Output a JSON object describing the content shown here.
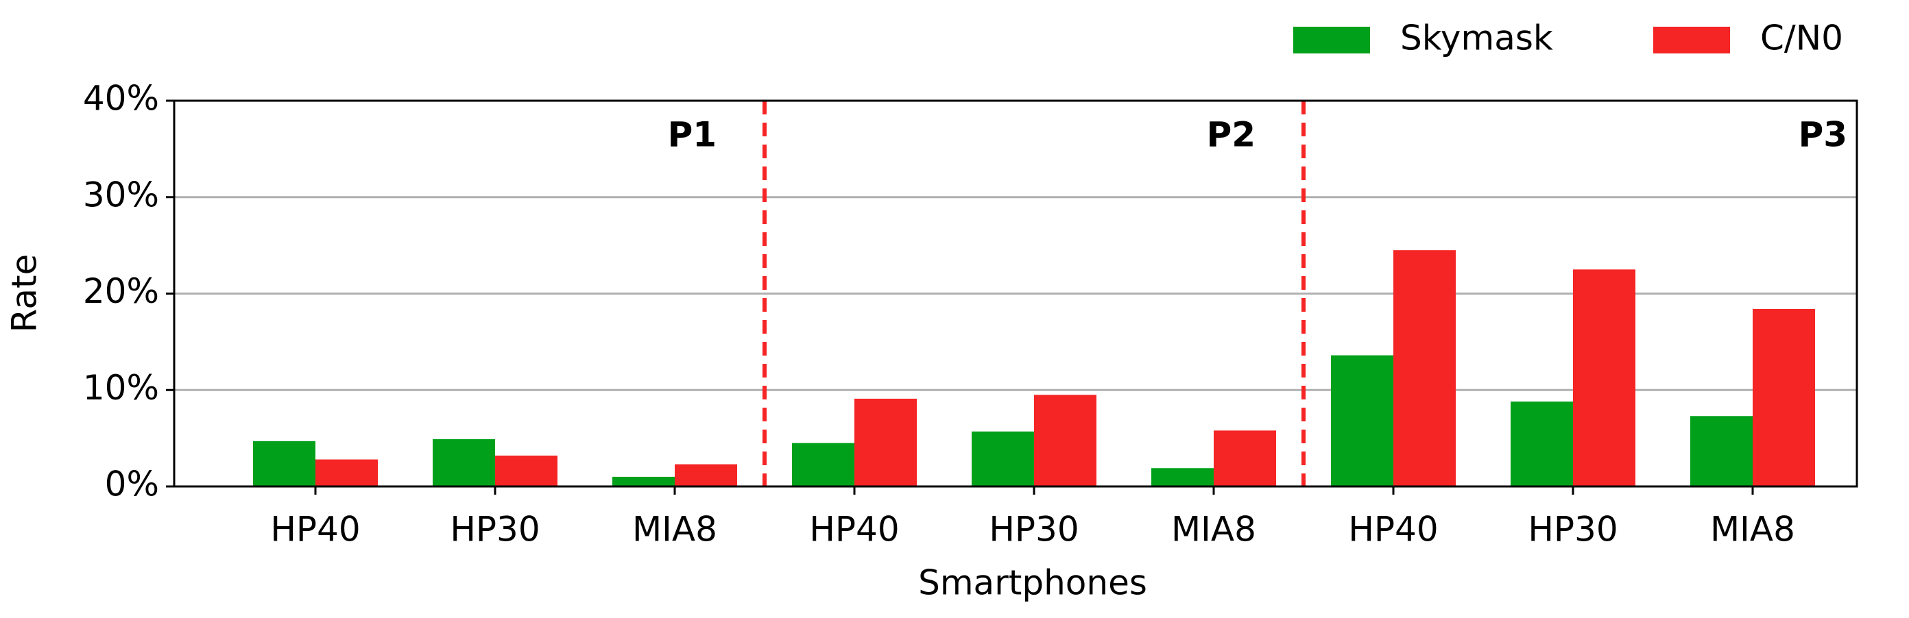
{
  "chart_data": {
    "type": "bar",
    "x_label": "Smartphones",
    "y_label": "Rate",
    "categories": [
      "HP40",
      "HP30",
      "MIA8",
      "HP40",
      "HP30",
      "MIA8",
      "HP40",
      "HP30",
      "MIA8"
    ],
    "groups": [
      "P1",
      "P2",
      "P3"
    ],
    "series": [
      {
        "name": "Skymask",
        "color": "#00a01a",
        "values": [
          4.7,
          4.9,
          1.0,
          4.5,
          5.7,
          1.9,
          13.6,
          8.8,
          7.3
        ]
      },
      {
        "name": "C/N0",
        "color": "#f52525",
        "values": [
          2.8,
          3.2,
          2.3,
          9.1,
          9.5,
          5.8,
          24.5,
          22.5,
          18.4
        ]
      }
    ],
    "ylim": [
      0,
      40
    ],
    "yticks": [
      {
        "value": 0,
        "label": "0%"
      },
      {
        "value": 10,
        "label": "10%"
      },
      {
        "value": 20,
        "label": "20%"
      },
      {
        "value": 30,
        "label": "30%"
      },
      {
        "value": 40,
        "label": "40%"
      }
    ],
    "grid": true,
    "legend": "top-right"
  }
}
